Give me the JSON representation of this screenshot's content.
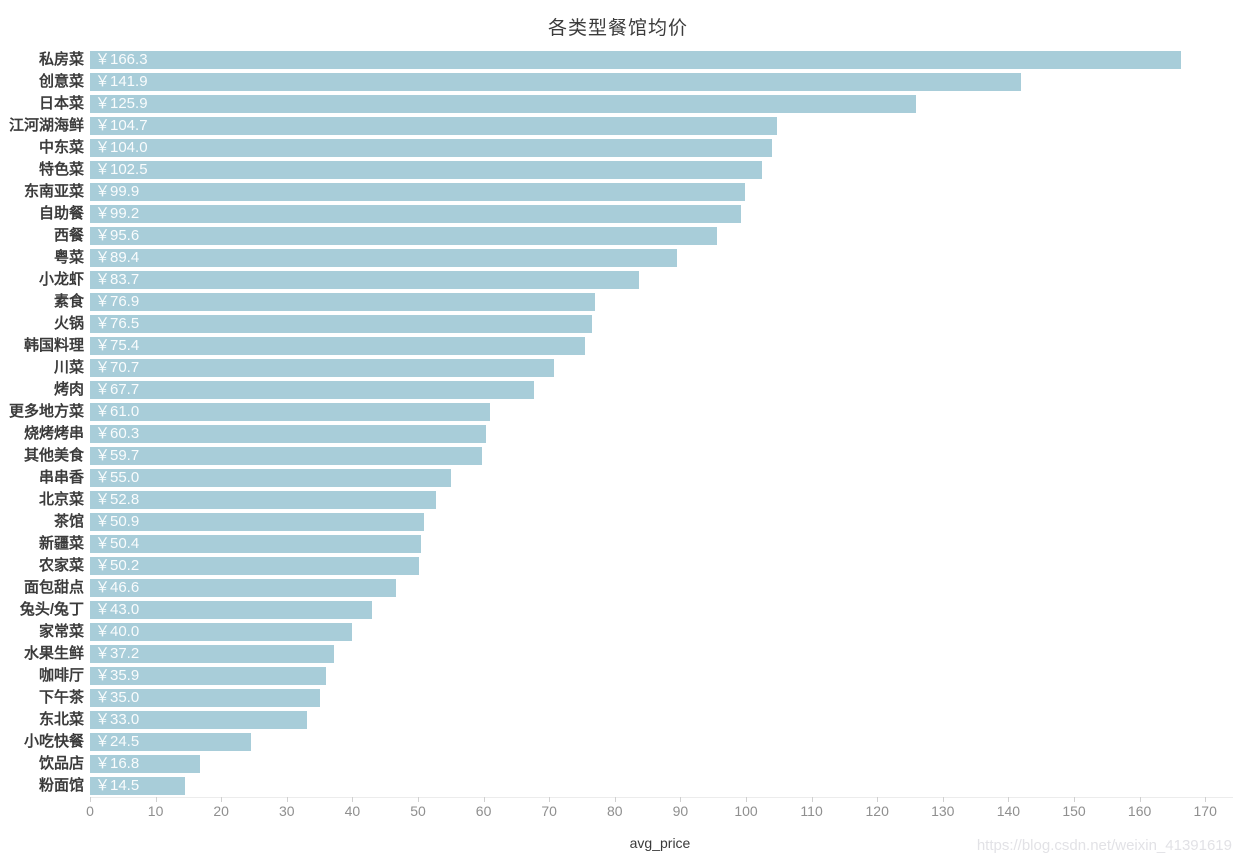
{
  "chart_data": {
    "type": "bar",
    "orientation": "horizontal",
    "title": "各类型餐馆均价",
    "xlabel": "avg_price",
    "ylabel": "",
    "xlim": [
      0,
      174.6
    ],
    "xticks": [
      0,
      10,
      20,
      30,
      40,
      50,
      60,
      70,
      80,
      90,
      100,
      110,
      120,
      130,
      140,
      150,
      160,
      170
    ],
    "grid": false,
    "legend": "none",
    "value_prefix": "￥",
    "categories": [
      "私房菜",
      "创意菜",
      "日本菜",
      "江河湖海鲜",
      "中东菜",
      "特色菜",
      "东南亚菜",
      "自助餐",
      "西餐",
      "粤菜",
      "小龙虾",
      "素食",
      "火锅",
      "韩国料理",
      "川菜",
      "烤肉",
      "更多地方菜",
      "烧烤烤串",
      "其他美食",
      "串串香",
      "北京菜",
      "茶馆",
      "新疆菜",
      "农家菜",
      "面包甜点",
      "兔头/兔丁",
      "家常菜",
      "水果生鲜",
      "咖啡厅",
      "下午茶",
      "东北菜",
      "小吃快餐",
      "饮品店",
      "粉面馆"
    ],
    "values": [
      166.3,
      141.9,
      125.9,
      104.7,
      104.0,
      102.5,
      99.9,
      99.2,
      95.6,
      89.4,
      83.7,
      76.9,
      76.5,
      75.4,
      70.7,
      67.7,
      61.0,
      60.3,
      59.7,
      55.0,
      52.8,
      50.9,
      50.4,
      50.2,
      46.6,
      43.0,
      40.0,
      37.2,
      35.9,
      35.0,
      33.0,
      24.5,
      16.8,
      14.5
    ],
    "value_labels": [
      "￥166.3",
      "￥141.9",
      "￥125.9",
      "￥104.7",
      "￥104.0",
      "￥102.5",
      "￥99.9",
      "￥99.2",
      "￥95.6",
      "￥89.4",
      "￥83.7",
      "￥76.9",
      "￥76.5",
      "￥75.4",
      "￥70.7",
      "￥67.7",
      "￥61.0",
      "￥60.3",
      "￥59.7",
      "￥55.0",
      "￥52.8",
      "￥50.9",
      "￥50.4",
      "￥50.2",
      "￥46.6",
      "￥43.0",
      "￥40.0",
      "￥37.2",
      "￥35.9",
      "￥35.0",
      "￥33.0",
      "￥24.5",
      "￥16.8",
      "￥14.5"
    ],
    "colors": {
      "bar": "#a8cdd9",
      "title": "#3c3c3c",
      "category_label": "#3b3b3b",
      "value_label": "rgba(255,255,255,0.93)",
      "tick_label": "#8f8f8f",
      "tick_mark": "#d0d0d0",
      "axis_line": "#ececec",
      "watermark": "#e2e2e6"
    }
  },
  "watermark": {
    "text": "https://blog.csdn.net/weixin_41391619"
  }
}
